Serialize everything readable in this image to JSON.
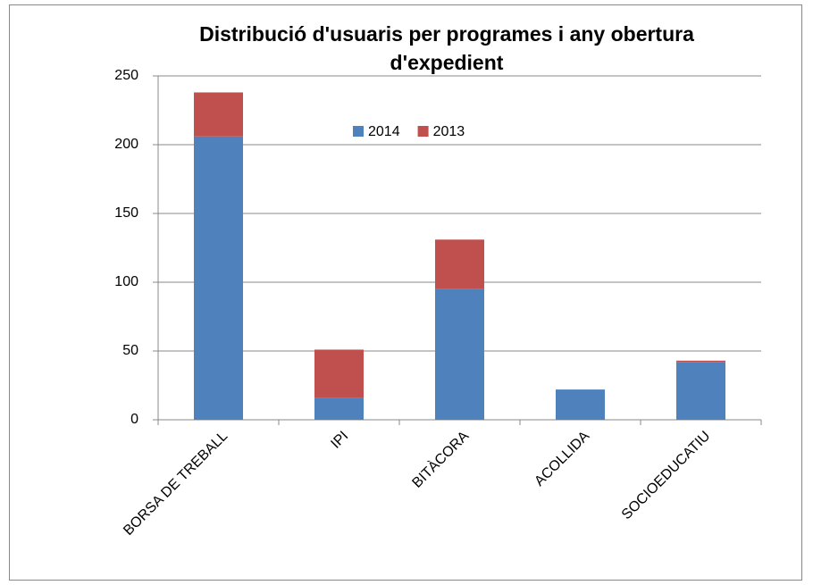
{
  "chart_data": {
    "type": "stacked_bar",
    "title": "Distribució d'usuaris per programes i any obertura d'expedient",
    "categories": [
      "BORSA DE TREBALL",
      "IPI",
      "BITÀCORA",
      "ACOLLIDA",
      "SOCIOEDUCATIU"
    ],
    "series": [
      {
        "name": "2014",
        "color": "#4f81bd",
        "values": [
          206,
          16,
          95,
          22,
          42
        ]
      },
      {
        "name": "2013",
        "color": "#c0504d",
        "values": [
          32,
          35,
          36,
          0,
          1
        ]
      }
    ],
    "ylim": [
      0,
      250
    ],
    "yticks": [
      0,
      50,
      100,
      150,
      200,
      250
    ],
    "grid": true,
    "legend": "top"
  }
}
